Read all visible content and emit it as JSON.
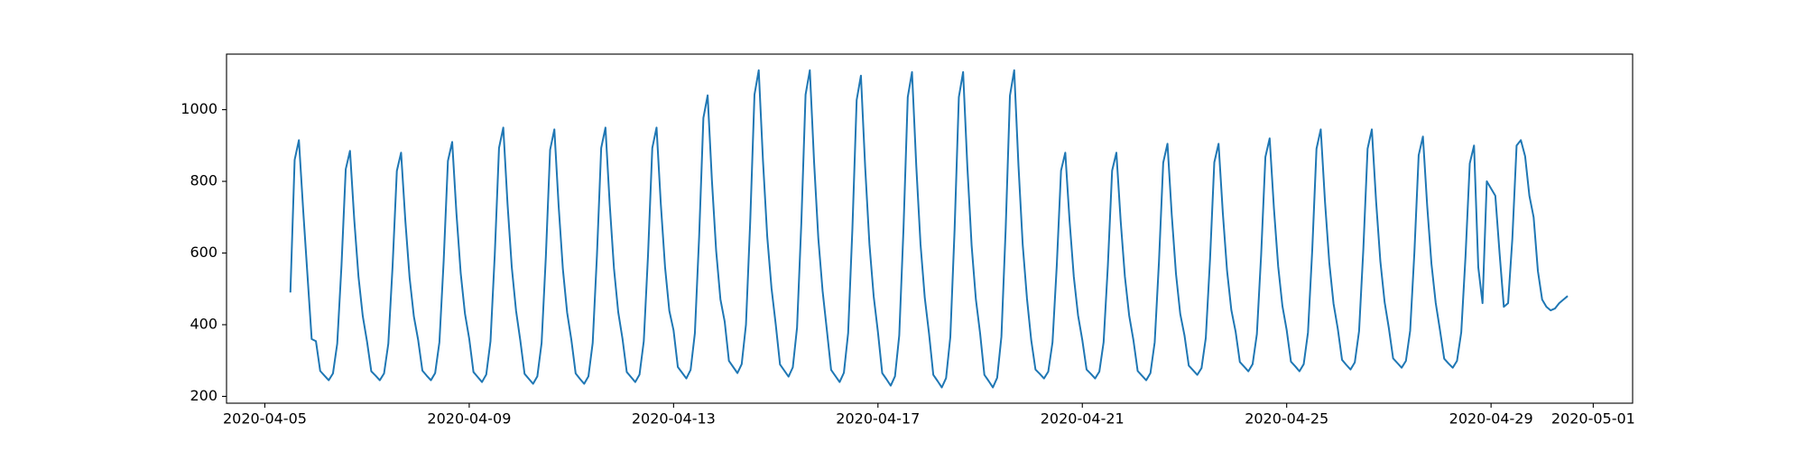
{
  "chart_data": {
    "type": "line",
    "x": [
      "2020-04-05",
      "2020-04-06",
      "2020-04-07",
      "2020-04-08",
      "2020-04-09",
      "2020-04-10",
      "2020-04-11",
      "2020-04-12",
      "2020-04-13",
      "2020-04-14",
      "2020-04-15",
      "2020-04-16",
      "2020-04-17",
      "2020-04-18",
      "2020-04-19",
      "2020-04-20",
      "2020-04-21",
      "2020-04-22",
      "2020-04-23",
      "2020-04-24",
      "2020-04-25",
      "2020-04-26",
      "2020-04-27",
      "2020-04-28",
      "2020-04-29",
      "2020-04-30"
    ],
    "values": [
      [
        null,
        null,
        null,
        null,
        null,
        null,
        490,
        860,
        915,
        720,
        540,
        360
      ],
      [
        354,
        271,
        258,
        245,
        264,
        347,
        565,
        834,
        885,
        693,
        533,
        424
      ],
      [
        353,
        270,
        258,
        245,
        264,
        347,
        563,
        829,
        880,
        690,
        531,
        423
      ],
      [
        358,
        272,
        258,
        245,
        265,
        351,
        578,
        857,
        910,
        711,
        544,
        431
      ],
      [
        361,
        268,
        254,
        240,
        261,
        354,
        595,
        893,
        950,
        737,
        560,
        439
      ],
      [
        356,
        263,
        249,
        235,
        256,
        349,
        590,
        888,
        945,
        732,
        555,
        434
      ],
      [
        357,
        264,
        249,
        235,
        256,
        349,
        593,
        893,
        950,
        736,
        557,
        435
      ],
      [
        361,
        268,
        254,
        240,
        261,
        354,
        595,
        893,
        950,
        737,
        560,
        439
      ],
      [
        384,
        282,
        266,
        250,
        274,
        376,
        645,
        977,
        1040,
        803,
        606,
        471
      ],
      [
        409,
        299,
        282,
        265,
        290,
        400,
        688,
        1042,
        1110,
        857,
        645,
        502
      ],
      [
        400,
        289,
        272,
        255,
        281,
        392,
        683,
        1042,
        1110,
        854,
        640,
        494
      ],
      [
        385,
        274,
        257,
        240,
        266,
        377,
        668,
        1027,
        1095,
        839,
        625,
        479
      ],
      [
        379,
        265,
        248,
        230,
        256,
        370,
        668,
        1035,
        1105,
        843,
        624,
        475
      ],
      [
        375,
        260,
        243,
        225,
        251,
        366,
        665,
        1035,
        1105,
        841,
        621,
        471
      ],
      [
        375,
        260,
        243,
        225,
        252,
        367,
        668,
        1039,
        1110,
        845,
        623,
        473
      ],
      [
        357,
        275,
        263,
        250,
        269,
        351,
        565,
        830,
        880,
        691,
        534,
        426
      ],
      [
        357,
        275,
        263,
        250,
        269,
        351,
        565,
        830,
        880,
        691,
        534,
        426
      ],
      [
        357,
        271,
        258,
        245,
        265,
        351,
        575,
        852,
        905,
        707,
        542,
        430
      ],
      [
        370,
        286,
        273,
        260,
        279,
        363,
        583,
        853,
        905,
        712,
        550,
        441
      ],
      [
        381,
        296,
        283,
        270,
        290,
        374,
        595,
        868,
        920,
        725,
        563,
        452
      ],
      [
        385,
        297,
        284,
        270,
        290,
        378,
        608,
        891,
        945,
        743,
        574,
        459
      ],
      [
        389,
        302,
        288,
        275,
        295,
        382,
        610,
        891,
        945,
        744,
        577,
        463
      ],
      [
        390,
        306,
        293,
        280,
        299,
        383,
        603,
        873,
        925,
        732,
        570,
        461
      ],
      [
        385,
        305,
        292,
        280,
        299,
        379,
        590,
        850,
        900,
        560,
        460,
        800
      ],
      [
        780,
        760,
        600,
        450,
        460,
        640,
        900,
        915,
        870,
        760,
        700,
        550
      ],
      [
        470,
        450,
        440,
        445,
        460,
        470,
        480,
        null,
        null,
        null,
        null,
        null
      ]
    ],
    "color": "#1f77b4",
    "xlim": [
      "2020-04-04T06:00",
      "2020-05-01T18:30"
    ],
    "xticks": [
      "2020-04-05",
      "2020-04-09",
      "2020-04-13",
      "2020-04-17",
      "2020-04-21",
      "2020-04-25",
      "2020-04-29",
      "2020-05-01"
    ],
    "ylim": [
      181,
      1155
    ],
    "yticks": [
      200,
      400,
      600,
      800,
      1000
    ]
  }
}
